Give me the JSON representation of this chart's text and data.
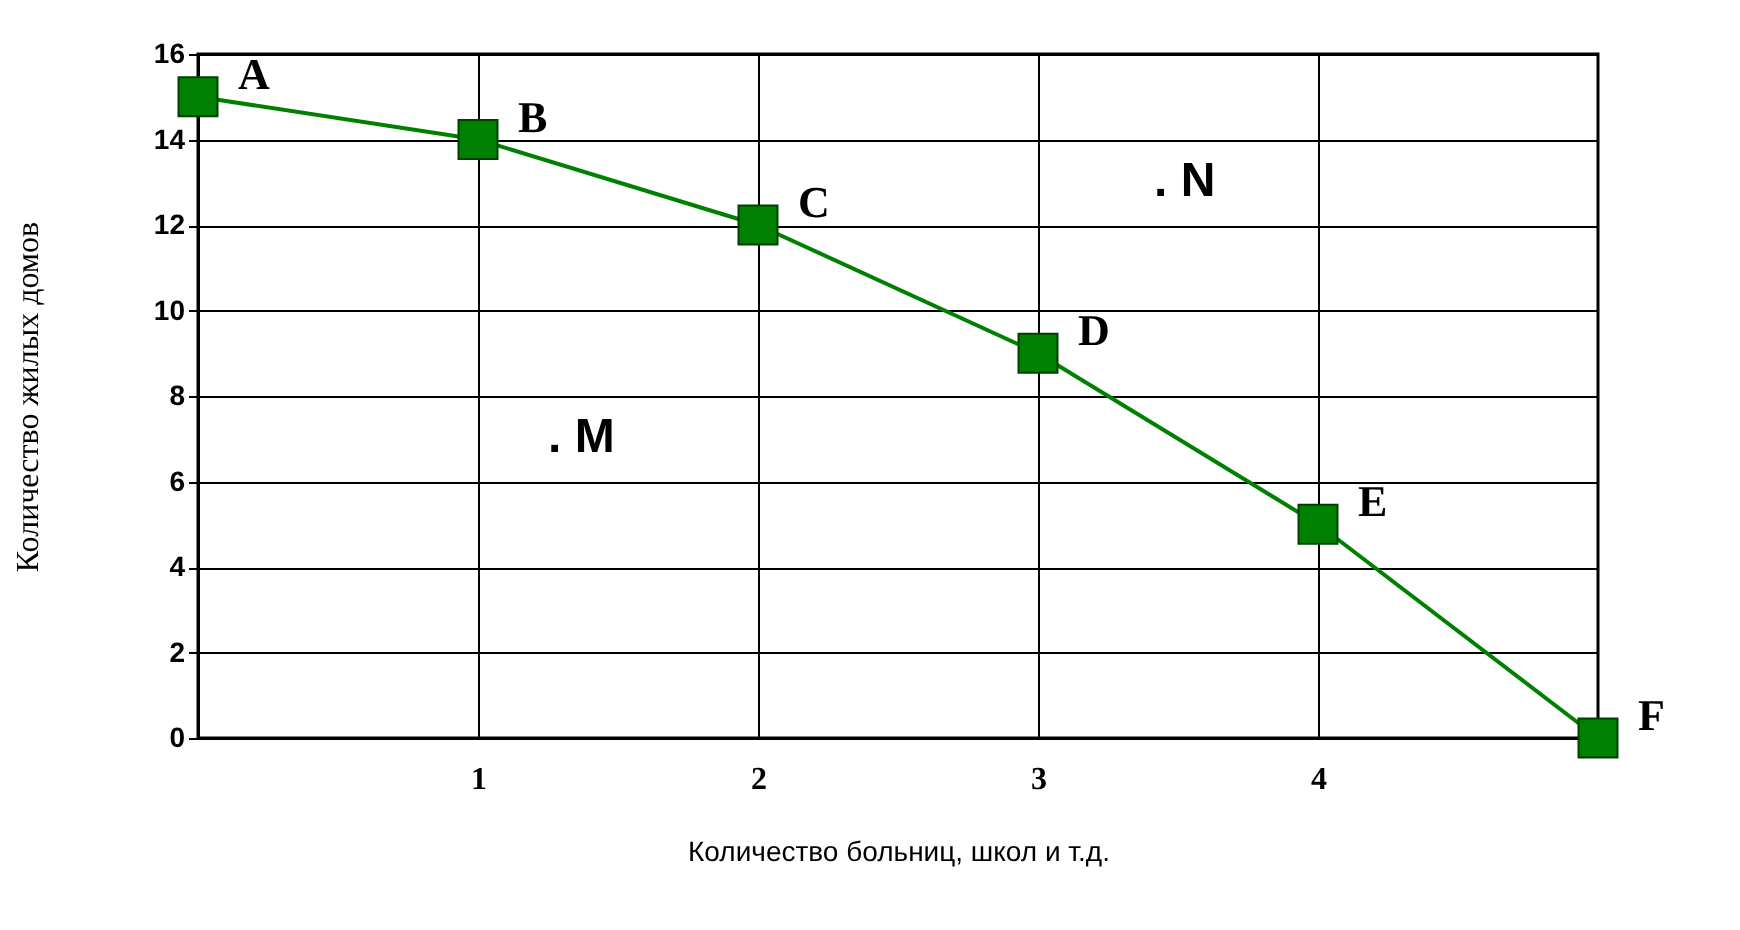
{
  "chart_data": {
    "type": "line",
    "xlabel": "Количество больниц, школ и т.д.",
    "ylabel": "Количество жилых домов",
    "x": [
      0,
      1,
      2,
      3,
      4,
      5
    ],
    "series": [
      {
        "color": "#008000",
        "values": [
          15,
          14,
          12,
          9,
          5,
          0
        ]
      }
    ],
    "xlim": [
      0,
      5
    ],
    "ylim": [
      0,
      16
    ],
    "xticks": [
      1,
      2,
      3,
      4
    ],
    "yticks": [
      0,
      2,
      4,
      6,
      8,
      10,
      12,
      14,
      16
    ],
    "grid": true,
    "marker": "square",
    "line_style": "solid",
    "annotations": [
      {
        "text": "A",
        "x": 0,
        "y": 15
      },
      {
        "text": "B",
        "x": 1,
        "y": 14
      },
      {
        "text": "C",
        "x": 2,
        "y": 12
      },
      {
        "text": "D",
        "x": 3,
        "y": 9
      },
      {
        "text": "E",
        "x": 4,
        "y": 5
      },
      {
        "text": "F",
        "x": 5,
        "y": 0
      },
      ". M",
      ". N"
    ]
  }
}
